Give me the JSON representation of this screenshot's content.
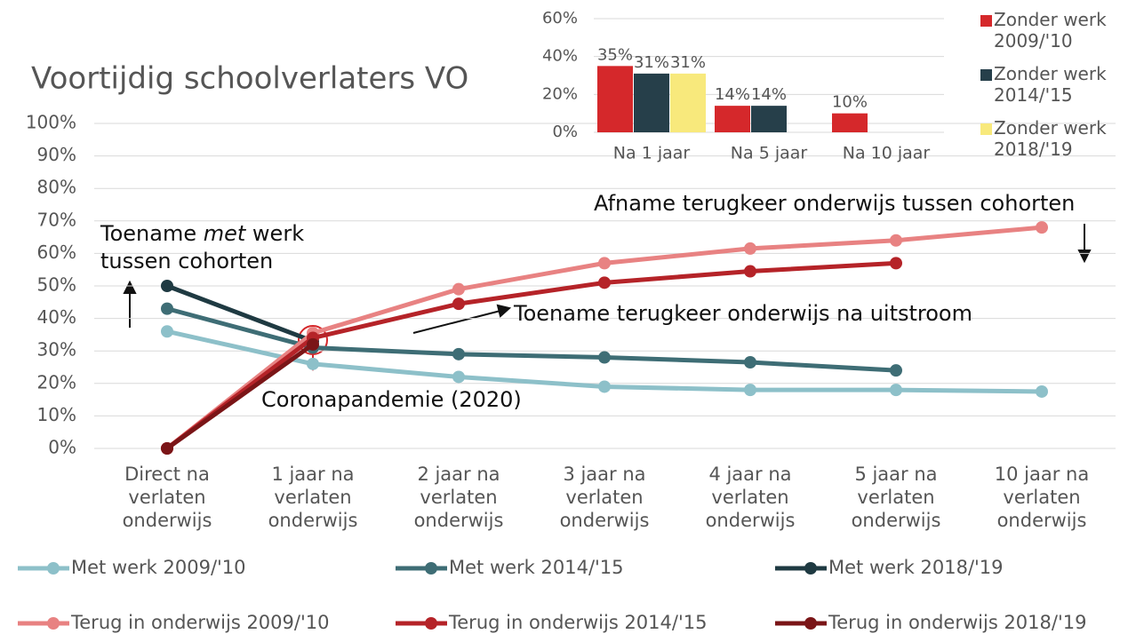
{
  "chart_data": [
    {
      "type": "line",
      "title": "Voortijdig schoolverlaters VO",
      "categories": [
        "Direct na\nverlaten\nonderwijs",
        "1 jaar na\nverlaten\nonderwijs",
        "2 jaar na\nverlaten\nonderwijs",
        "3 jaar na\nverlaten\nonderwijs",
        "4 jaar na\nverlaten\nonderwijs",
        "5 jaar na\nverlaten\nonderwijs",
        "10 jaar na\nverlaten\nonderwijs"
      ],
      "series": [
        {
          "name": "Met werk 2009/'10",
          "color": "#8dc0c9",
          "values": [
            36,
            26,
            22,
            19,
            18,
            18,
            17.5
          ]
        },
        {
          "name": "Met werk 2014/'15",
          "color": "#3e6d75",
          "values": [
            43,
            31,
            29,
            28,
            26.5,
            24,
            null
          ]
        },
        {
          "name": "Met werk 2018/'19",
          "color": "#1f3a42",
          "values": [
            50,
            33,
            null,
            null,
            null,
            null,
            null
          ]
        },
        {
          "name": "Terug in onderwijs 2009/'10",
          "color": "#e88282",
          "values": [
            0,
            35.5,
            49,
            57,
            61.5,
            64,
            68
          ]
        },
        {
          "name": "Terug in onderwijs 2014/'15",
          "color": "#b52328",
          "values": [
            0,
            34,
            44.5,
            51,
            54.5,
            57,
            null
          ]
        },
        {
          "name": "Terug in onderwijs 2018/'19",
          "color": "#7a1517",
          "values": [
            0,
            32,
            null,
            null,
            null,
            null,
            null
          ]
        }
      ],
      "ylim": [
        0,
        100
      ],
      "yticks": [
        {
          "value": 0,
          "label": "0%"
        },
        {
          "value": 10,
          "label": "10%"
        },
        {
          "value": 20,
          "label": "20%"
        },
        {
          "value": 30,
          "label": "30%"
        },
        {
          "value": 40,
          "label": "40%"
        },
        {
          "value": 50,
          "label": "50%"
        },
        {
          "value": 60,
          "label": "60%"
        },
        {
          "value": 70,
          "label": "70%"
        },
        {
          "value": 80,
          "label": "80%"
        },
        {
          "value": 90,
          "label": "90%"
        },
        {
          "value": 100,
          "label": "100%"
        }
      ],
      "grid": true,
      "annotations": {
        "toename_werk": [
          "Toename ",
          "met",
          " werk",
          "tussen cohorten"
        ],
        "afname": "Afname terugkeer onderwijs tussen cohorten",
        "toename_onderwijs": "Toename terugkeer onderwijs na uitstroom",
        "corona": "Coronapandemie (2020)"
      }
    },
    {
      "type": "bar",
      "categories": [
        "Na 1 jaar",
        "Na 5 jaar",
        "Na 10 jaar"
      ],
      "series": [
        {
          "name": "Zonder werk\n2009/'10",
          "color": "#d5282b",
          "values": [
            35,
            14,
            10
          ],
          "value_labels": [
            "35%",
            "14%",
            "10%"
          ]
        },
        {
          "name": "Zonder werk\n2014/'15",
          "color": "#263f4a",
          "values": [
            31,
            14,
            null
          ],
          "value_labels": [
            "31%",
            "14%",
            null
          ]
        },
        {
          "name": "Zonder werk\n2018/'19",
          "color": "#f8e97c",
          "values": [
            31,
            null,
            null
          ],
          "value_labels": [
            "31%",
            null,
            null
          ]
        }
      ],
      "ylim": [
        0,
        60
      ],
      "yticks": [
        {
          "value": 0,
          "label": "0%"
        },
        {
          "value": 20,
          "label": "20%"
        },
        {
          "value": 40,
          "label": "40%"
        },
        {
          "value": 60,
          "label": "60%"
        }
      ],
      "grid": true
    }
  ]
}
